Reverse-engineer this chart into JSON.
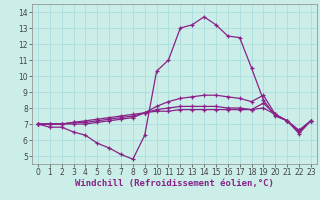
{
  "xlabel": "Windchill (Refroidissement éolien,°C)",
  "bg_color": "#cceee8",
  "line_color": "#882288",
  "grid_color": "#aadddd",
  "xlim": [
    -0.5,
    23.5
  ],
  "ylim": [
    4.5,
    14.5
  ],
  "xticks": [
    0,
    1,
    2,
    3,
    4,
    5,
    6,
    7,
    8,
    9,
    10,
    11,
    12,
    13,
    14,
    15,
    16,
    17,
    18,
    19,
    20,
    21,
    22,
    23
  ],
  "yticks": [
    5,
    6,
    7,
    8,
    9,
    10,
    11,
    12,
    13,
    14
  ],
  "curves": [
    [
      7.0,
      6.8,
      6.8,
      6.5,
      6.3,
      5.8,
      5.5,
      5.1,
      4.8,
      6.3,
      10.3,
      11.0,
      13.0,
      13.2,
      13.7,
      13.2,
      12.5,
      12.4,
      10.5,
      8.5,
      7.5,
      7.2,
      6.4,
      7.2
    ],
    [
      7.0,
      7.0,
      7.0,
      7.0,
      7.0,
      7.1,
      7.2,
      7.3,
      7.4,
      7.7,
      8.1,
      8.4,
      8.6,
      8.7,
      8.8,
      8.8,
      8.7,
      8.6,
      8.4,
      8.8,
      7.6,
      7.2,
      6.5,
      7.2
    ],
    [
      7.0,
      7.0,
      7.0,
      7.1,
      7.1,
      7.2,
      7.3,
      7.4,
      7.5,
      7.7,
      7.9,
      8.0,
      8.1,
      8.1,
      8.1,
      8.1,
      8.0,
      8.0,
      7.9,
      8.3,
      7.6,
      7.2,
      6.6,
      7.2
    ],
    [
      7.0,
      7.0,
      7.0,
      7.1,
      7.2,
      7.3,
      7.4,
      7.5,
      7.6,
      7.7,
      7.8,
      7.8,
      7.9,
      7.9,
      7.9,
      7.9,
      7.9,
      7.9,
      7.9,
      8.0,
      7.6,
      7.2,
      6.6,
      7.2
    ]
  ],
  "font_size": 6.5,
  "tick_font_size": 5.5,
  "xlabel_fontsize": 6.5
}
